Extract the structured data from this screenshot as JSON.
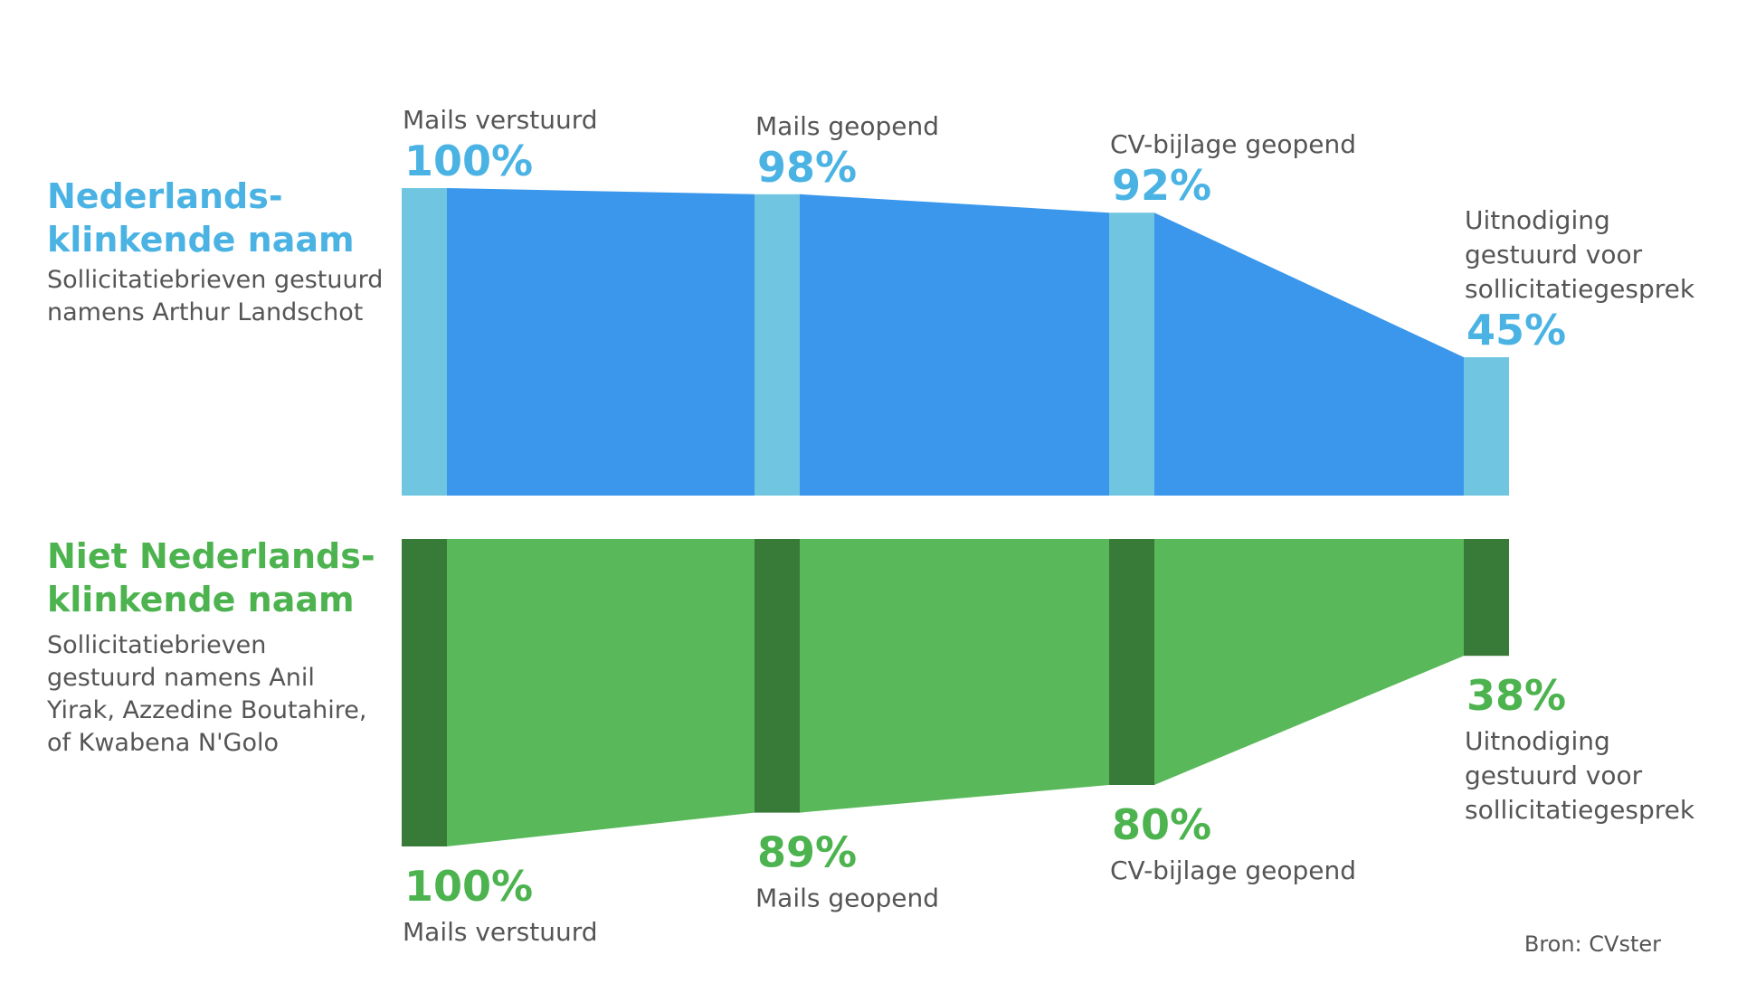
{
  "chart_data": {
    "type": "area",
    "x": [
      "Mails verstuurd",
      "Mails geopend",
      "CV-bijlage geopend",
      "Uitnodiging gestuurd voor sollicitatiegesprek"
    ],
    "ylim": [
      0,
      100
    ],
    "series": [
      {
        "key": "nl",
        "name_lines": [
          "Nederlands-",
          "klinkende naam"
        ],
        "description_lines": [
          "Sollicitatiebrieven gestuurd",
          "namens Arthur Landschot"
        ],
        "values": [
          100,
          98,
          92,
          45
        ],
        "value_labels": [
          "100%",
          "98%",
          "92%",
          "45%"
        ],
        "stage_label_lines": [
          [
            "Mails verstuurd"
          ],
          [
            "Mails geopend"
          ],
          [
            "CV-bijlage geopend"
          ],
          [
            "Uitnodiging",
            "gestuurd voor",
            "sollicitatiegesprek"
          ]
        ],
        "color_fill": "#3a97ec",
        "color_bar": "#70c5e0",
        "color_text": "#4bb3e3"
      },
      {
        "key": "non_nl",
        "name_lines": [
          "Niet Nederlands-",
          "klinkende naam"
        ],
        "description_lines": [
          "Sollicitatiebrieven",
          "gestuurd namens Anil",
          "Yirak,  Azzedine Boutahire,",
          "of Kwabena N'Golo"
        ],
        "values": [
          100,
          89,
          80,
          38
        ],
        "value_labels": [
          "100%",
          "89%",
          "80%",
          "38%"
        ],
        "stage_label_lines": [
          [
            "Mails verstuurd"
          ],
          [
            "Mails geopend"
          ],
          [
            "CV-bijlage geopend"
          ],
          [
            "Uitnodiging",
            "gestuurd voor",
            "sollicitatiegesprek"
          ]
        ],
        "color_fill": "#59b95a",
        "color_bar": "#387a38",
        "color_text": "#4cb34f"
      }
    ],
    "source": "Bron: CVster"
  }
}
